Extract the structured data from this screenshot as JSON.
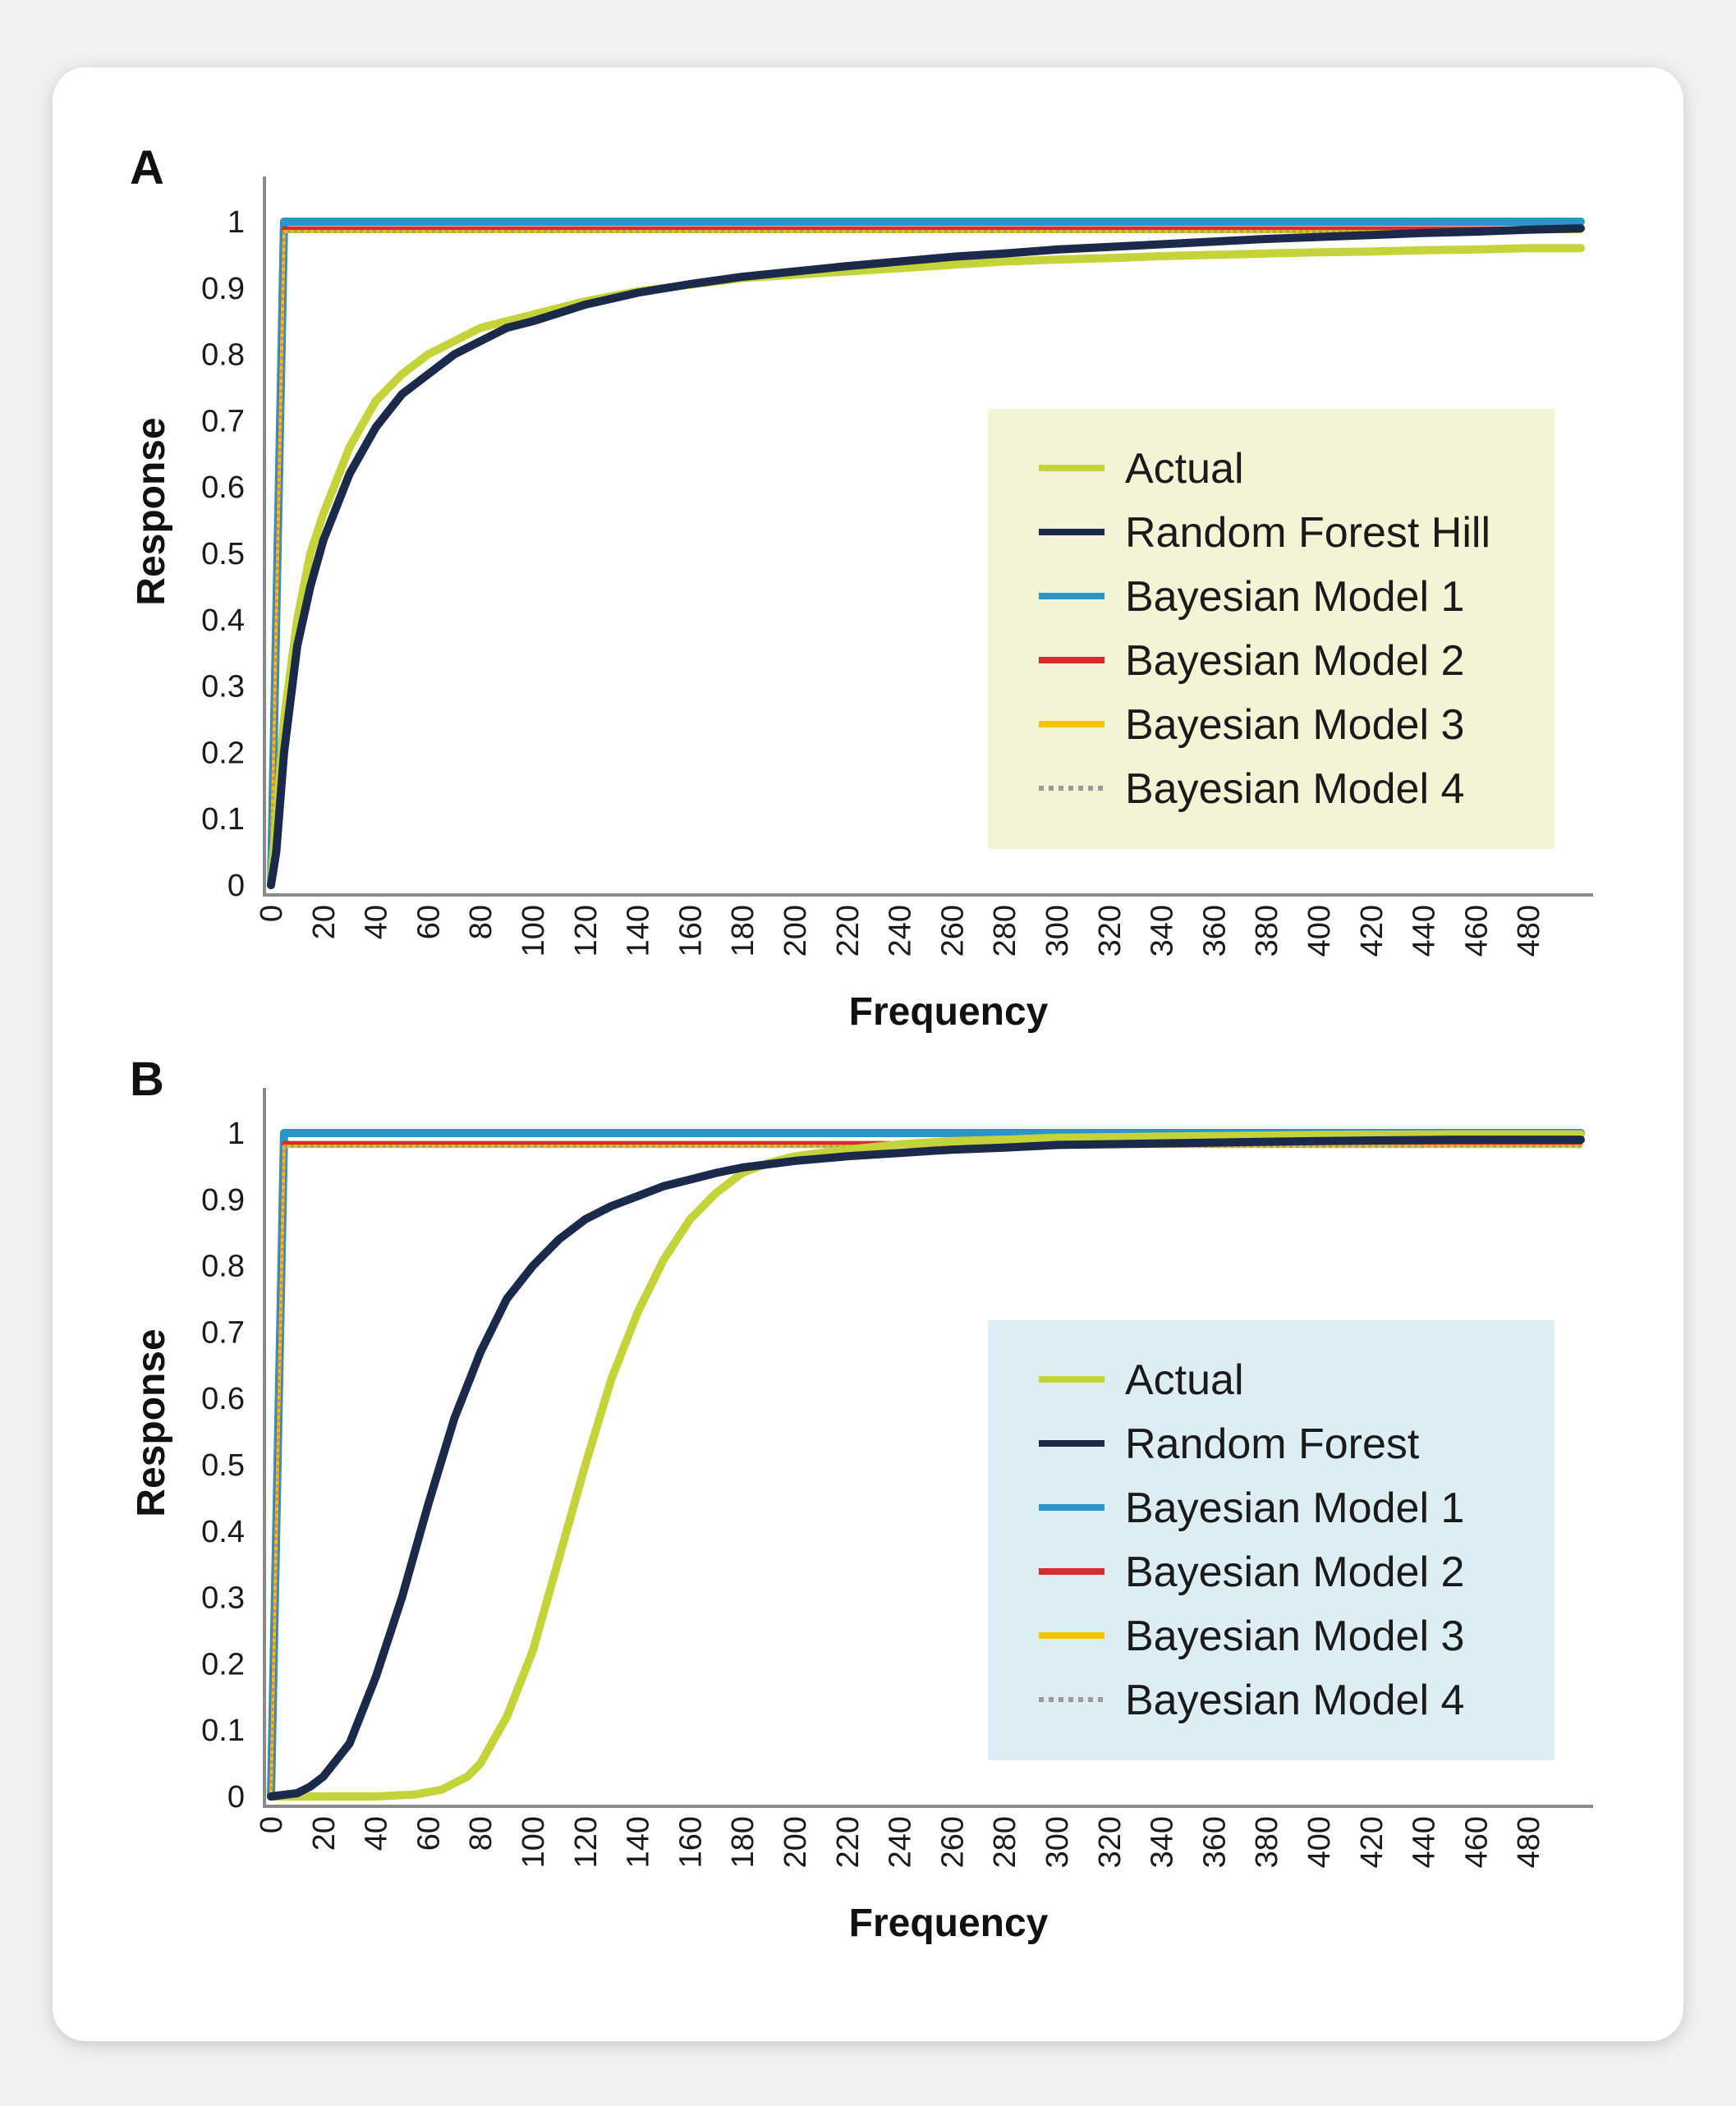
{
  "colors": {
    "actual": "#c5d33a",
    "random_forest": "#1b2a4a",
    "bayesian_1": "#2a95c6",
    "bayesian_2": "#d82a2a",
    "bayesian_3": "#f5c400",
    "bayesian_4": "#9a9a9a"
  },
  "chart_data": [
    {
      "panel": "A",
      "type": "line",
      "xlabel": "Frequency",
      "ylabel": "Response",
      "xlim": [
        0,
        500
      ],
      "ylim": [
        0,
        1
      ],
      "x_ticks": [
        0,
        20,
        40,
        60,
        80,
        100,
        120,
        140,
        160,
        180,
        200,
        220,
        240,
        260,
        280,
        300,
        320,
        340,
        360,
        380,
        400,
        420,
        440,
        460,
        480
      ],
      "y_ticks": [
        0,
        0.1,
        0.2,
        0.3,
        0.4,
        0.5,
        0.6,
        0.7,
        0.8,
        0.9,
        1
      ],
      "y_tick_labels": [
        "0",
        "0.1",
        "0.2",
        "0.3",
        "0.4",
        "0.5",
        "0.6",
        "0.7",
        "0.8",
        "0.9",
        "1"
      ],
      "legend_position": "right",
      "legend_bg": "#f3f4d6",
      "series": [
        {
          "name": "Actual",
          "color_key": "actual",
          "style": "solid",
          "x": [
            0,
            2,
            5,
            10,
            15,
            20,
            30,
            40,
            50,
            60,
            70,
            80,
            90,
            100,
            120,
            140,
            160,
            180,
            200,
            220,
            240,
            260,
            280,
            300,
            320,
            340,
            360,
            380,
            400,
            420,
            440,
            460,
            480,
            500
          ],
          "y": [
            0,
            0.1,
            0.25,
            0.4,
            0.5,
            0.56,
            0.66,
            0.73,
            0.77,
            0.8,
            0.82,
            0.84,
            0.85,
            0.86,
            0.88,
            0.895,
            0.905,
            0.915,
            0.92,
            0.925,
            0.93,
            0.935,
            0.94,
            0.943,
            0.945,
            0.948,
            0.95,
            0.952,
            0.954,
            0.955,
            0.957,
            0.958,
            0.96,
            0.96
          ]
        },
        {
          "name": "Random Forest Hill",
          "color_key": "random_forest",
          "style": "solid",
          "x": [
            0,
            2,
            5,
            10,
            15,
            20,
            30,
            40,
            50,
            60,
            70,
            80,
            90,
            100,
            120,
            140,
            160,
            180,
            200,
            220,
            240,
            260,
            280,
            300,
            320,
            340,
            360,
            380,
            400,
            420,
            440,
            460,
            480,
            500
          ],
          "y": [
            0,
            0.05,
            0.2,
            0.36,
            0.45,
            0.52,
            0.62,
            0.69,
            0.74,
            0.77,
            0.8,
            0.82,
            0.84,
            0.85,
            0.875,
            0.893,
            0.906,
            0.917,
            0.925,
            0.933,
            0.94,
            0.947,
            0.952,
            0.958,
            0.962,
            0.966,
            0.97,
            0.974,
            0.977,
            0.98,
            0.983,
            0.985,
            0.988,
            0.99
          ]
        },
        {
          "name": "Bayesian Model 1",
          "color_key": "bayesian_1",
          "style": "solid",
          "x": [
            0,
            5,
            500
          ],
          "y": [
            0,
            1,
            1
          ]
        },
        {
          "name": "Bayesian Model 2",
          "color_key": "bayesian_2",
          "style": "solid",
          "x": [
            0,
            5,
            500
          ],
          "y": [
            0,
            0.99,
            0.99
          ]
        },
        {
          "name": "Bayesian Model 3",
          "color_key": "bayesian_3",
          "style": "solid",
          "x": [
            0,
            5,
            500
          ],
          "y": [
            0,
            0.985,
            0.985
          ]
        },
        {
          "name": "Bayesian Model 4",
          "color_key": "bayesian_4",
          "style": "dotted",
          "x": [
            0,
            5,
            500
          ],
          "y": [
            0,
            0.985,
            0.985
          ]
        }
      ]
    },
    {
      "panel": "B",
      "type": "line",
      "xlabel": "Frequency",
      "ylabel": "Response",
      "xlim": [
        0,
        500
      ],
      "ylim": [
        0,
        1
      ],
      "x_ticks": [
        0,
        20,
        40,
        60,
        80,
        100,
        120,
        140,
        160,
        180,
        200,
        220,
        240,
        260,
        280,
        300,
        320,
        340,
        360,
        380,
        400,
        420,
        440,
        460,
        480
      ],
      "y_ticks": [
        0,
        0.1,
        0.2,
        0.3,
        0.4,
        0.5,
        0.6,
        0.7,
        0.8,
        0.9,
        1
      ],
      "y_tick_labels": [
        "0",
        "0.1",
        "0.2",
        "0.3",
        "0.4",
        "0.5",
        "0.6",
        "0.7",
        "0.8",
        "0.9",
        "1"
      ],
      "legend_position": "right",
      "legend_bg": "#dcedf4",
      "series": [
        {
          "name": "Actual",
          "color_key": "actual",
          "style": "solid",
          "x": [
            0,
            40,
            55,
            65,
            75,
            80,
            90,
            100,
            110,
            120,
            130,
            140,
            150,
            160,
            170,
            180,
            190,
            200,
            220,
            240,
            260,
            280,
            300,
            350,
            400,
            450,
            500
          ],
          "y": [
            0,
            0,
            0.003,
            0.01,
            0.03,
            0.05,
            0.12,
            0.22,
            0.36,
            0.5,
            0.63,
            0.73,
            0.81,
            0.87,
            0.91,
            0.94,
            0.955,
            0.965,
            0.975,
            0.983,
            0.988,
            0.99,
            0.993,
            0.995,
            0.997,
            0.998,
            0.998
          ]
        },
        {
          "name": "Random Forest",
          "color_key": "random_forest",
          "style": "solid",
          "x": [
            0,
            10,
            15,
            20,
            30,
            40,
            50,
            60,
            70,
            80,
            90,
            100,
            110,
            120,
            130,
            140,
            150,
            160,
            170,
            180,
            200,
            220,
            240,
            260,
            280,
            300,
            350,
            400,
            450,
            500
          ],
          "y": [
            0,
            0.005,
            0.015,
            0.03,
            0.08,
            0.18,
            0.3,
            0.44,
            0.57,
            0.67,
            0.75,
            0.8,
            0.84,
            0.87,
            0.89,
            0.905,
            0.92,
            0.93,
            0.94,
            0.948,
            0.958,
            0.965,
            0.97,
            0.975,
            0.978,
            0.982,
            0.985,
            0.988,
            0.99,
            0.99
          ]
        },
        {
          "name": "Bayesian Model 1",
          "color_key": "bayesian_1",
          "style": "solid",
          "x": [
            0,
            5,
            500
          ],
          "y": [
            0,
            1,
            1
          ]
        },
        {
          "name": "Bayesian Model 2",
          "color_key": "bayesian_2",
          "style": "solid",
          "x": [
            0,
            5,
            500
          ],
          "y": [
            0,
            0.985,
            0.985
          ]
        },
        {
          "name": "Bayesian Model 3",
          "color_key": "bayesian_3",
          "style": "solid",
          "x": [
            0,
            5,
            500
          ],
          "y": [
            0,
            0.98,
            0.98
          ]
        },
        {
          "name": "Bayesian Model 4",
          "color_key": "bayesian_4",
          "style": "dotted",
          "x": [
            0,
            5,
            500
          ],
          "y": [
            0,
            0.98,
            0.98
          ]
        }
      ]
    }
  ]
}
